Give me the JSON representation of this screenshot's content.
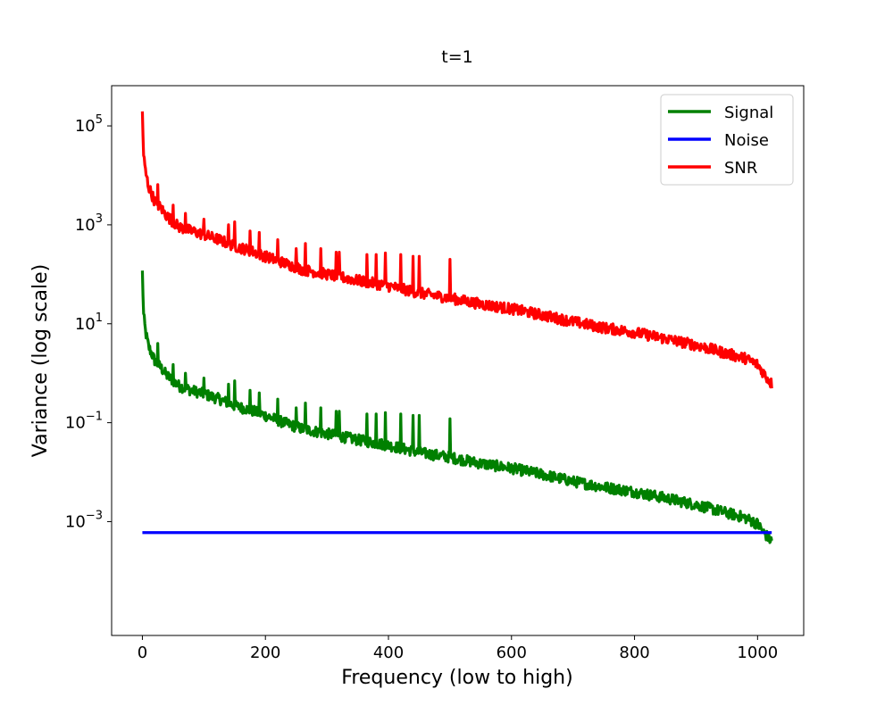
{
  "chart_data": {
    "type": "line",
    "title": "t=1",
    "xlabel": "Frequency (low to high)",
    "ylabel": "Variance (log scale)",
    "xlim": [
      -50,
      1075
    ],
    "ylim": [
      5e-06,
      650000
    ],
    "yscale": "log",
    "grid": false,
    "legend_position": "top-right",
    "x_ticks": [
      {
        "value": 0,
        "label": "0"
      },
      {
        "value": 200,
        "label": "200"
      },
      {
        "value": 400,
        "label": "400"
      },
      {
        "value": 600,
        "label": "600"
      },
      {
        "value": 800,
        "label": "800"
      },
      {
        "value": 1000,
        "label": "1000"
      }
    ],
    "y_ticks": [
      {
        "value": 100000,
        "base": "10",
        "exp": "5"
      },
      {
        "value": 1000,
        "base": "10",
        "exp": "3"
      },
      {
        "value": 10,
        "base": "10",
        "exp": "1"
      },
      {
        "value": 0.1,
        "base": "10",
        "exp": "−1"
      },
      {
        "value": 0.001,
        "base": "10",
        "exp": "−3"
      }
    ],
    "series": [
      {
        "name": "Signal",
        "color": "#008000",
        "x": [
          0,
          2,
          5,
          10,
          15,
          20,
          30,
          40,
          50,
          60,
          80,
          100,
          125,
          150,
          175,
          200,
          230,
          260,
          300,
          350,
          400,
          450,
          500,
          550,
          600,
          650,
          700,
          750,
          800,
          850,
          900,
          950,
          980,
          1000,
          1010,
          1023
        ],
        "y": [
          110,
          15,
          7,
          3.5,
          2.5,
          1.8,
          1.3,
          0.9,
          0.7,
          0.55,
          0.45,
          0.38,
          0.3,
          0.22,
          0.18,
          0.14,
          0.1,
          0.075,
          0.06,
          0.045,
          0.035,
          0.025,
          0.02,
          0.015,
          0.012,
          0.009,
          0.0065,
          0.005,
          0.004,
          0.003,
          0.0022,
          0.0015,
          0.0012,
          0.0009,
          0.0006,
          0.0004
        ],
        "spikes": [
          {
            "x": 25,
            "y": 4
          },
          {
            "x": 50,
            "y": 1.5
          },
          {
            "x": 70,
            "y": 1
          },
          {
            "x": 100,
            "y": 0.8
          },
          {
            "x": 140,
            "y": 0.6
          },
          {
            "x": 150,
            "y": 0.7
          },
          {
            "x": 175,
            "y": 0.45
          },
          {
            "x": 190,
            "y": 0.4
          },
          {
            "x": 220,
            "y": 0.3
          },
          {
            "x": 250,
            "y": 0.2
          },
          {
            "x": 265,
            "y": 0.25
          },
          {
            "x": 290,
            "y": 0.2
          },
          {
            "x": 315,
            "y": 0.17
          },
          {
            "x": 320,
            "y": 0.17
          },
          {
            "x": 365,
            "y": 0.15
          },
          {
            "x": 380,
            "y": 0.15
          },
          {
            "x": 395,
            "y": 0.16
          },
          {
            "x": 420,
            "y": 0.15
          },
          {
            "x": 440,
            "y": 0.14
          },
          {
            "x": 450,
            "y": 0.14
          },
          {
            "x": 500,
            "y": 0.12
          }
        ]
      },
      {
        "name": "Noise",
        "color": "#0000ff",
        "x": [
          0,
          1023
        ],
        "y": [
          0.0006,
          0.0006
        ]
      },
      {
        "name": "SNR",
        "color": "#ff0000",
        "x": [
          0,
          2,
          5,
          10,
          15,
          20,
          30,
          40,
          50,
          60,
          80,
          100,
          125,
          150,
          175,
          200,
          230,
          260,
          300,
          350,
          400,
          450,
          500,
          550,
          600,
          650,
          700,
          750,
          800,
          850,
          900,
          950,
          980,
          1000,
          1010,
          1023
        ],
        "y": [
          190000,
          25000,
          12000,
          6000,
          4200,
          3000,
          2200,
          1500,
          1150,
          900,
          750,
          630,
          500,
          370,
          300,
          230,
          170,
          125,
          100,
          75,
          58,
          42,
          33,
          25,
          20,
          15,
          11,
          8.3,
          6.7,
          5,
          3.7,
          2.5,
          2,
          1.5,
          1,
          0.6
        ],
        "spikes": [
          {
            "x": 25,
            "y": 6500
          },
          {
            "x": 50,
            "y": 2500
          },
          {
            "x": 70,
            "y": 1700
          },
          {
            "x": 100,
            "y": 1300
          },
          {
            "x": 140,
            "y": 1000
          },
          {
            "x": 150,
            "y": 1150
          },
          {
            "x": 175,
            "y": 750
          },
          {
            "x": 190,
            "y": 700
          },
          {
            "x": 220,
            "y": 500
          },
          {
            "x": 250,
            "y": 330
          },
          {
            "x": 265,
            "y": 420
          },
          {
            "x": 290,
            "y": 330
          },
          {
            "x": 315,
            "y": 280
          },
          {
            "x": 320,
            "y": 280
          },
          {
            "x": 365,
            "y": 250
          },
          {
            "x": 380,
            "y": 250
          },
          {
            "x": 395,
            "y": 270
          },
          {
            "x": 420,
            "y": 250
          },
          {
            "x": 440,
            "y": 230
          },
          {
            "x": 450,
            "y": 230
          },
          {
            "x": 500,
            "y": 200
          }
        ]
      }
    ]
  }
}
